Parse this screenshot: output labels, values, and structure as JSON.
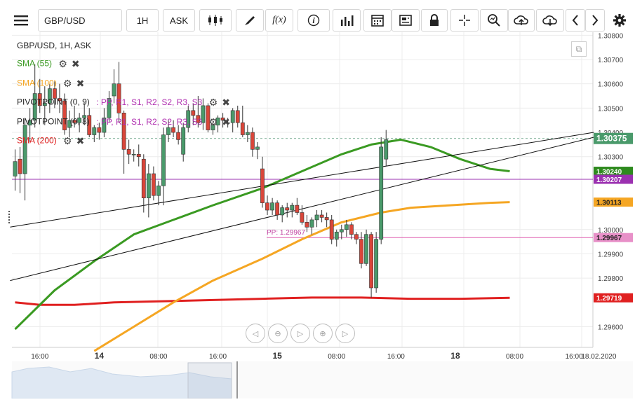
{
  "toolbar": {
    "symbol": "GBP/USD",
    "timeframe": "1H",
    "price_type": "ASK",
    "icons": [
      "menu-icon",
      "candles-icon",
      "draw-icon",
      "function-icon",
      "info-icon",
      "bar-chart-icon",
      "calendar-icon",
      "news-icon",
      "lock-icon",
      "crosshair-icon",
      "zoom-icon",
      "upload-icon",
      "download-icon",
      "chevron-left-icon",
      "chevron-right-icon",
      "gear-icon"
    ],
    "function_label": "f(x)",
    "info_label": "i"
  },
  "legend": {
    "title": "GBP/USD, 1H, ASK",
    "sma55": "SMA (55)",
    "sma100": "SMA (100)",
    "pivot1": "PIVOTPOINT (0, 9)",
    "pivot1_levels": ": PP, R1, S1, R2, S2, R3, S3",
    "pivot2": "PIVOTPOINT (0, 8)",
    "pivot2_levels": ": PP, R1, S1, R2, S2, R3, S3",
    "sma200": "SMA (200)"
  },
  "pp_label": "PP: 1.29967",
  "colors": {
    "up": "#4a9a6b",
    "down": "#d9463a",
    "sma55": "#3a9a22",
    "sma100": "#f5a623",
    "sma200": "#e02020",
    "pivot_purple": "#9b30b0",
    "pp_pink": "#e060b0",
    "trend": "#111111"
  },
  "chart_data": {
    "type": "candlestick",
    "symbol": "GBP/USD",
    "timeframe": "1H",
    "y_ticks": [
      1.308,
      1.307,
      1.306,
      1.305,
      1.304,
      1.303,
      1.3,
      1.299,
      1.298,
      1.296
    ],
    "y_tick_labels": [
      "1.30800",
      "1.30700",
      "1.30600",
      "1.30500",
      "1.30400",
      "1.30300",
      "1.30000",
      "1.29900",
      "1.29800",
      "1.29600"
    ],
    "ylim": [
      1.295,
      1.3083
    ],
    "x_labels": [
      {
        "label": "16:00",
        "i": 5
      },
      {
        "label": "14",
        "i": 17
      },
      {
        "label": "08:00",
        "i": 29
      },
      {
        "label": "16:00",
        "i": 41
      },
      {
        "label": "15",
        "i": 53
      },
      {
        "label": "08:00",
        "i": 65
      },
      {
        "label": "16:00",
        "i": 77
      },
      {
        "label": "18",
        "i": 89
      },
      {
        "label": "08:00",
        "i": 101
      },
      {
        "label": "16:00",
        "i": 113
      },
      {
        "label": "18.02.2020",
        "i": 118
      }
    ],
    "candles": [
      [
        1.3022,
        1.3033,
        1.3016,
        1.3028
      ],
      [
        1.3029,
        1.3034,
        1.3015,
        1.3023
      ],
      [
        1.3023,
        1.3046,
        1.3012,
        1.3043
      ],
      [
        1.3043,
        1.305,
        1.3036,
        1.3045
      ],
      [
        1.3045,
        1.3068,
        1.3042,
        1.3056
      ],
      [
        1.3056,
        1.3062,
        1.3048,
        1.3051
      ],
      [
        1.3051,
        1.3059,
        1.3043,
        1.3052
      ],
      [
        1.3052,
        1.306,
        1.3048,
        1.3058
      ],
      [
        1.3058,
        1.3061,
        1.305,
        1.3054
      ],
      [
        1.3054,
        1.306,
        1.3048,
        1.3053
      ],
      [
        1.3053,
        1.3056,
        1.3039,
        1.3041
      ],
      [
        1.3042,
        1.3049,
        1.3038,
        1.3045
      ],
      [
        1.3045,
        1.3051,
        1.3042,
        1.3044
      ],
      [
        1.3044,
        1.3048,
        1.304,
        1.3046
      ],
      [
        1.3046,
        1.3052,
        1.3043,
        1.3047
      ],
      [
        1.3047,
        1.305,
        1.3038,
        1.3039
      ],
      [
        1.3039,
        1.3043,
        1.3036,
        1.3042
      ],
      [
        1.3042,
        1.3044,
        1.3037,
        1.304
      ],
      [
        1.304,
        1.305,
        1.3038,
        1.3046
      ],
      [
        1.3046,
        1.3057,
        1.3044,
        1.3054
      ],
      [
        1.3055,
        1.3066,
        1.3052,
        1.306
      ],
      [
        1.306,
        1.3069,
        1.3044,
        1.3048
      ],
      [
        1.3048,
        1.3049,
        1.3023,
        1.3033
      ],
      [
        1.3033,
        1.3037,
        1.3027,
        1.3031
      ],
      [
        1.3031,
        1.3033,
        1.3028,
        1.3031
      ],
      [
        1.3031,
        1.3035,
        1.3026,
        1.303
      ],
      [
        1.3029,
        1.3031,
        1.3007,
        1.3013
      ],
      [
        1.3013,
        1.3027,
        1.3005,
        1.3023
      ],
      [
        1.3023,
        1.3026,
        1.3012,
        1.3014
      ],
      [
        1.3014,
        1.302,
        1.301,
        1.3018
      ],
      [
        1.3018,
        1.3042,
        1.301,
        1.3039
      ],
      [
        1.3039,
        1.3045,
        1.3036,
        1.3042
      ],
      [
        1.3042,
        1.3045,
        1.3038,
        1.304
      ],
      [
        1.304,
        1.3043,
        1.3035,
        1.3037
      ],
      [
        1.3031,
        1.3044,
        1.3028,
        1.3042
      ],
      [
        1.3042,
        1.3051,
        1.304,
        1.3049
      ],
      [
        1.3049,
        1.3052,
        1.3043,
        1.3047
      ],
      [
        1.3047,
        1.3055,
        1.3042,
        1.3044
      ],
      [
        1.3044,
        1.3054,
        1.3041,
        1.3051
      ],
      [
        1.3051,
        1.3052,
        1.304,
        1.3041
      ],
      [
        1.3041,
        1.3045,
        1.3039,
        1.3043
      ],
      [
        1.3043,
        1.3047,
        1.304,
        1.3046
      ],
      [
        1.3046,
        1.3048,
        1.3042,
        1.3045
      ],
      [
        1.3044,
        1.3046,
        1.3042,
        1.3044
      ],
      [
        1.3044,
        1.305,
        1.304,
        1.3049
      ],
      [
        1.3049,
        1.3051,
        1.3042,
        1.3044
      ],
      [
        1.3044,
        1.3051,
        1.3038,
        1.3039
      ],
      [
        1.3039,
        1.3043,
        1.3036,
        1.304
      ],
      [
        1.304,
        1.3042,
        1.303,
        1.3033
      ],
      [
        1.3033,
        1.3036,
        1.3029,
        1.3034
      ],
      [
        1.3025,
        1.303,
        1.3009,
        1.3011
      ],
      [
        1.3011,
        1.3014,
        1.3006,
        1.3008
      ],
      [
        1.3008,
        1.3013,
        1.3006,
        1.3011
      ],
      [
        1.3011,
        1.3012,
        1.3004,
        1.3006
      ],
      [
        1.3006,
        1.301,
        1.3003,
        1.3009
      ],
      [
        1.3009,
        1.3011,
        1.3005,
        1.3008
      ],
      [
        1.3008,
        1.3011,
        1.3005,
        1.301
      ],
      [
        1.301,
        1.3013,
        1.3006,
        1.3007
      ],
      [
        1.3007,
        1.301,
        1.3002,
        1.3003
      ],
      [
        1.3003,
        1.3006,
        1.2999,
        1.3001
      ],
      [
        1.3001,
        1.3005,
        1.2998,
        1.3004
      ],
      [
        1.3004,
        1.3008,
        1.3001,
        1.3006
      ],
      [
        1.3006,
        1.3008,
        1.3003,
        1.3005
      ],
      [
        1.3005,
        1.3007,
        1.3001,
        1.3004
      ],
      [
        1.3004,
        1.3006,
        1.2994,
        1.2996
      ],
      [
        1.2996,
        1.3,
        1.2993,
        1.2999
      ],
      [
        1.2999,
        1.3002,
        1.2996,
        1.3
      ],
      [
        1.3,
        1.3004,
        1.2997,
        1.3002
      ],
      [
        1.3002,
        1.3003,
        1.2996,
        1.2998
      ],
      [
        1.2998,
        1.2999,
        1.2994,
        1.2996
      ],
      [
        1.2996,
        1.2999,
        1.2984,
        1.2986
      ],
      [
        1.2986,
        1.3,
        1.2985,
        1.2998
      ],
      [
        1.2998,
        1.2999,
        1.2972,
        1.2976
      ],
      [
        1.2976,
        1.2999,
        1.2974,
        1.2996
      ],
      [
        1.2996,
        1.3038,
        1.2994,
        1.3034
      ],
      [
        1.3029,
        1.3041,
        1.3026,
        1.3037
      ]
    ],
    "sma55": [
      [
        0,
        1.2959
      ],
      [
        8,
        1.2975
      ],
      [
        16,
        1.2987
      ],
      [
        24,
        1.2998
      ],
      [
        32,
        1.3004
      ],
      [
        40,
        1.301
      ],
      [
        50,
        1.3017
      ],
      [
        58,
        1.3024
      ],
      [
        66,
        1.3031
      ],
      [
        72,
        1.3035
      ],
      [
        78,
        1.3037
      ],
      [
        84,
        1.3034
      ],
      [
        90,
        1.3029
      ],
      [
        96,
        1.3025
      ],
      [
        100,
        1.3024
      ]
    ],
    "sma100": [
      [
        16,
        1.295
      ],
      [
        24,
        1.296
      ],
      [
        32,
        1.297
      ],
      [
        40,
        1.2979
      ],
      [
        50,
        1.2988
      ],
      [
        58,
        1.2996
      ],
      [
        66,
        1.3003
      ],
      [
        74,
        1.3007
      ],
      [
        80,
        1.3009
      ],
      [
        88,
        1.301
      ],
      [
        96,
        1.3011
      ],
      [
        100,
        1.30113
      ]
    ],
    "sma200": [
      [
        0,
        1.297
      ],
      [
        5,
        1.2969
      ],
      [
        12,
        1.2969
      ],
      [
        20,
        1.297
      ],
      [
        30,
        1.29705
      ],
      [
        40,
        1.2971
      ],
      [
        50,
        1.29715
      ],
      [
        60,
        1.2972
      ],
      [
        70,
        1.2972
      ],
      [
        80,
        1.29715
      ],
      [
        90,
        1.29715
      ],
      [
        100,
        1.29719
      ]
    ],
    "pp_level": 1.29967,
    "purple_level": 1.30207,
    "trendlines": [
      {
        "from": [
          -1,
          1.3001
        ],
        "to": [
          117,
          1.304
        ]
      },
      {
        "from": [
          -1,
          1.2979
        ],
        "to": [
          117,
          1.3038
        ]
      }
    ],
    "price_labels": [
      {
        "value": 1.30375,
        "label": "1.30375",
        "kind": "current"
      },
      {
        "value": 1.3024,
        "label": "1.30240",
        "kind": "sma55"
      },
      {
        "value": 1.30207,
        "label": "1.30207",
        "kind": "purple"
      },
      {
        "value": 1.30113,
        "label": "1.30113",
        "kind": "sma100"
      },
      {
        "value": 1.29967,
        "label": "1.29967",
        "kind": "pp"
      },
      {
        "value": 1.29719,
        "label": "1.29719",
        "kind": "sma200"
      }
    ]
  }
}
